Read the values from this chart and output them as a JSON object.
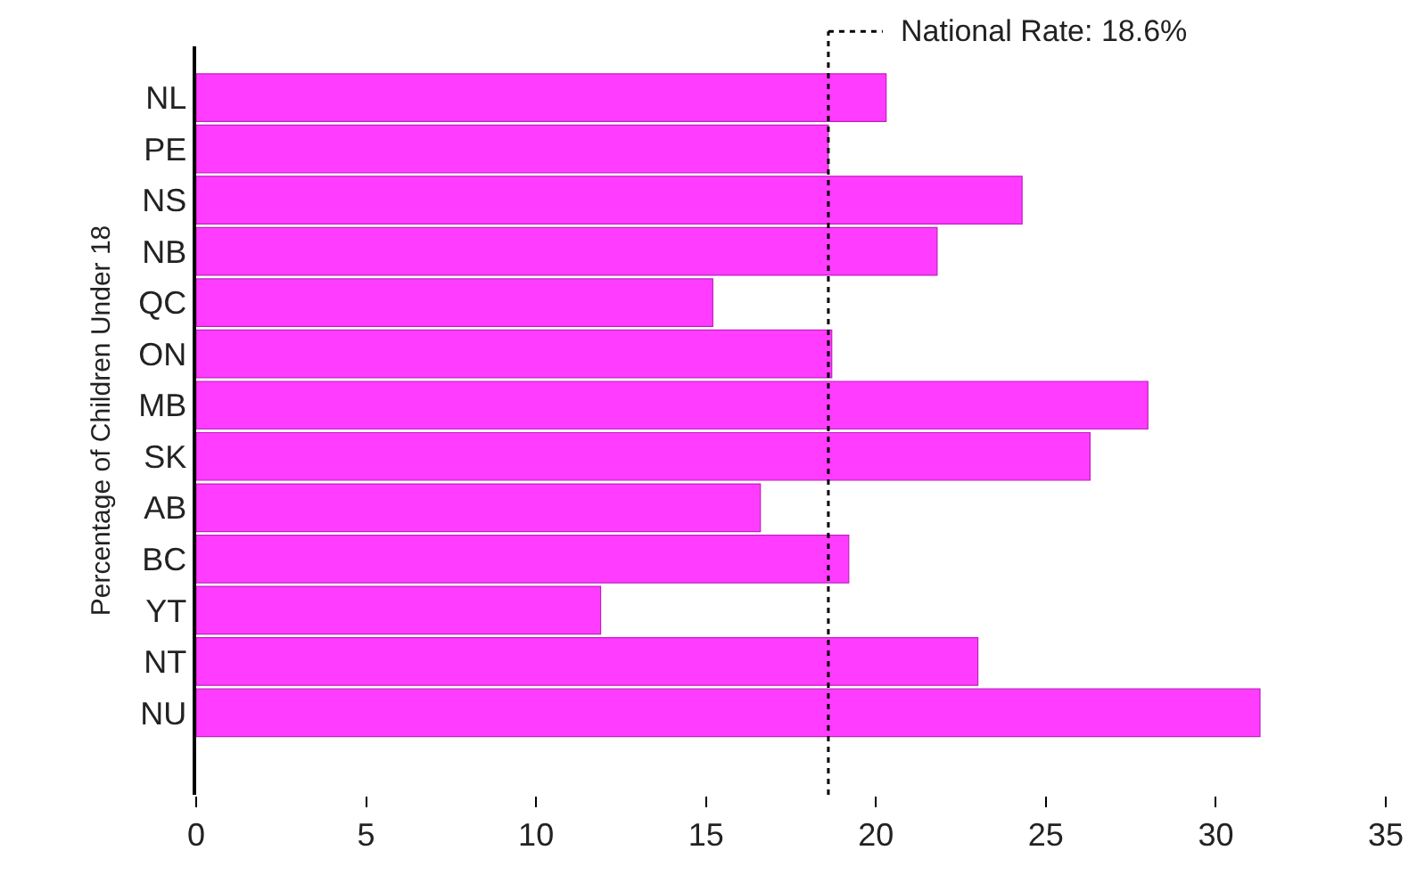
{
  "chart_data": {
    "type": "bar",
    "orientation": "horizontal",
    "ylabel": "Percentage of Children Under 18",
    "categories": [
      "NL",
      "PE",
      "NS",
      "NB",
      "QC",
      "ON",
      "MB",
      "SK",
      "AB",
      "BC",
      "YT",
      "NT",
      "NU"
    ],
    "values": [
      20.3,
      18.6,
      24.3,
      21.8,
      15.2,
      18.7,
      28.0,
      26.3,
      16.6,
      19.2,
      11.9,
      23.0,
      31.3
    ],
    "color": "#ff3cff",
    "xlim": [
      0,
      35
    ],
    "xticks": [
      0,
      5,
      10,
      15,
      20,
      25,
      30,
      35
    ],
    "ref_lines": [
      {
        "axis": "x",
        "value": 18.6,
        "label": "National Rate: 18.6%",
        "color": "#000000",
        "line_style": "dotted"
      }
    ]
  }
}
